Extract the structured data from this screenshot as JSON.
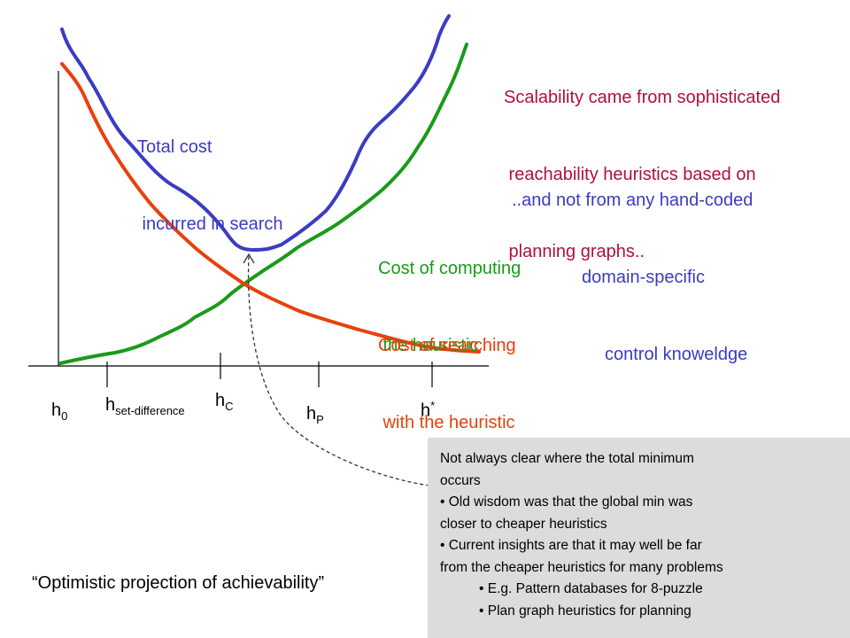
{
  "curves": {
    "total_cost": {
      "label_line1": "Total cost",
      "label_line2": " incurred in search",
      "color": "#3b3bc4"
    },
    "computing_cost": {
      "label_line1": "Cost of computing",
      "label_line2": " the heuristic",
      "color": "#1a9a1a"
    },
    "searching_cost": {
      "label_line1": "Cost of searching",
      "label_line2": " with the heuristic",
      "color": "#e8400c"
    }
  },
  "ticks": [
    {
      "base": "h",
      "sub": "0"
    },
    {
      "base": "h",
      "sub": "set-difference"
    },
    {
      "base": "h",
      "sub": "C"
    },
    {
      "base": "h",
      "sub": "P"
    },
    {
      "base": "h",
      "sup": "*"
    }
  ],
  "note_top": {
    "line1": "Scalability came from sophisticated",
    "line2": " reachability heuristics based on",
    "line3": " planning graphs..",
    "color": "#b0103a"
  },
  "note_mid": {
    "line1": "..and not from any hand-coded",
    "line2": "domain-specific",
    "line3": "control knoweldge",
    "color": "#3b3bc4"
  },
  "note_box": {
    "lines": [
      "Not always clear where the total minimum",
      "occurs",
      "Old wisdom was that the global min was",
      "closer to cheaper heuristics",
      "Current insights are that it may well be far",
      "from the cheaper heuristics for many problems",
      "E.g. Pattern databases for 8-puzzle",
      " Plan graph heuristics for planning"
    ],
    "background": "#dcdcdc"
  },
  "quote": "“Optimistic projection of achievability”"
}
